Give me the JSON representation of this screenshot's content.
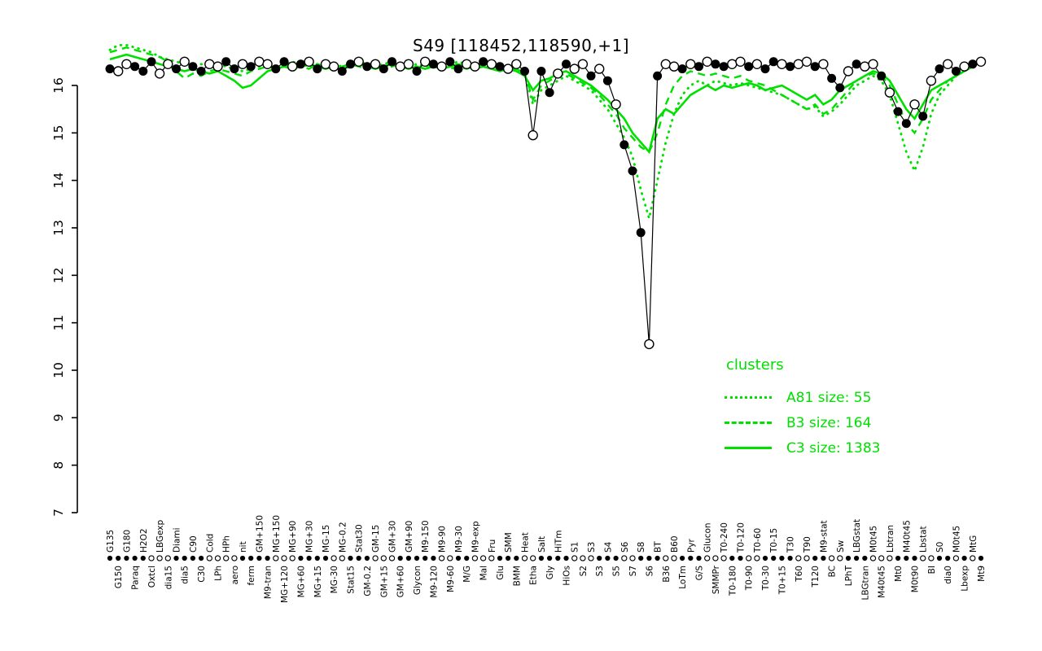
{
  "title": "S49 [118452,118590,+1]",
  "legend": {
    "header": "clusters",
    "entries": [
      {
        "style": "dotted",
        "label": "A81 size: 55"
      },
      {
        "style": "dashed",
        "label": "B3 size: 164"
      },
      {
        "style": "solid",
        "label": "C3 size: 1383"
      }
    ]
  },
  "colors": {
    "cluster_green": "#00e000",
    "series_black": "#000000"
  },
  "chart_data": {
    "type": "line",
    "title": "S49 [118452,118590,+1]",
    "xlabel": "",
    "ylabel": "",
    "ylim": [
      7,
      16
    ],
    "yticks": [
      7,
      8,
      9,
      10,
      11,
      12,
      13,
      14,
      15,
      16
    ],
    "grid": false,
    "legend_position": "right-middle",
    "categories": [
      "G135",
      "G150",
      "G180",
      "Paraq",
      "H2O2",
      "Oxtcl",
      "LBGexp",
      "dia15",
      "Diami",
      "dia5",
      "C90",
      "C30",
      "Cold",
      "LPh",
      "HPh",
      "aero",
      "nit",
      "ferm",
      "GM+150",
      "M9-tran",
      "MG+150",
      "MG+120",
      "MG+90",
      "MG+60",
      "MG+30",
      "MG+15",
      "MG-15",
      "MG-30",
      "MG-0.2",
      "Stat15",
      "Stat30",
      "GM-0.2",
      "GM-15",
      "GM+15",
      "GM+30",
      "GM+60",
      "GM+90",
      "Glycon",
      "M9-150",
      "M9-120",
      "M9-90",
      "M9-60",
      "M9-30",
      "M/G",
      "M9-exp",
      "Mal",
      "Fru",
      "Glu",
      "SMM",
      "BMM",
      "Heat",
      "Etha",
      "Salt",
      "Gly",
      "HiTm",
      "HiOs",
      "S1",
      "S2",
      "S3",
      "S3",
      "S4",
      "S5",
      "S6",
      "S7",
      "S8",
      "S6",
      "BT",
      "B36",
      "B60",
      "LoTm",
      "Pyr",
      "G/S",
      "Glucon",
      "SMMPr",
      "T0-240",
      "T0-180",
      "T0-120",
      "T0-90",
      "T0-60",
      "T0-30",
      "T0-15",
      "T0+15",
      "T30",
      "T60",
      "T90",
      "T120",
      "M9-stat",
      "BC",
      "Sw",
      "LPhT",
      "LBGstat",
      "LBGtran",
      "M0t45",
      "M40t45",
      "Lbtran",
      "Mt0",
      "M40t45",
      "M0t90",
      "Lbstat",
      "BI",
      "S0",
      "dia0",
      "M0t45",
      "Lbexp",
      "MtG",
      "Mt9"
    ],
    "series": [
      {
        "name": "A81",
        "legend_label": "A81 size: 55",
        "style": "dotted",
        "color": "#00e000",
        "values": [
          16.75,
          16.85,
          16.85,
          16.8,
          16.75,
          16.7,
          16.6,
          16.55,
          16.5,
          16.45,
          16.4,
          16.45,
          16.4,
          16.45,
          16.4,
          16.35,
          16.3,
          16.35,
          16.4,
          16.45,
          16.4,
          16.45,
          16.5,
          16.45,
          16.4,
          16.45,
          16.5,
          16.45,
          16.4,
          16.45,
          16.5,
          16.45,
          16.4,
          16.45,
          16.5,
          16.45,
          16.4,
          16.45,
          16.4,
          16.45,
          16.4,
          16.45,
          16.5,
          16.45,
          16.4,
          16.45,
          16.4,
          16.35,
          16.4,
          16.35,
          16.25,
          15.6,
          15.9,
          16.0,
          16.1,
          16.2,
          16.1,
          16.0,
          15.9,
          15.7,
          15.5,
          15.2,
          14.9,
          14.5,
          13.8,
          13.2,
          14.0,
          14.8,
          15.4,
          15.8,
          16.0,
          16.1,
          16.0,
          16.1,
          16.05,
          16.0,
          16.05,
          16.0,
          15.95,
          15.9,
          15.85,
          15.8,
          15.7,
          15.6,
          15.5,
          15.55,
          15.35,
          15.45,
          15.6,
          15.8,
          16.0,
          16.1,
          16.2,
          16.1,
          15.8,
          15.2,
          14.6,
          14.2,
          14.7,
          15.4,
          15.8,
          16.0,
          16.2,
          16.3,
          16.45,
          16.55
        ]
      },
      {
        "name": "B3",
        "legend_label": "B3 size: 164",
        "style": "dashed",
        "color": "#00e000",
        "values": [
          16.7,
          16.75,
          16.8,
          16.75,
          16.7,
          16.65,
          16.6,
          16.5,
          16.3,
          16.15,
          16.25,
          16.2,
          16.3,
          16.35,
          16.3,
          16.25,
          16.2,
          16.3,
          16.35,
          16.4,
          16.35,
          16.4,
          16.45,
          16.4,
          16.35,
          16.45,
          16.4,
          16.35,
          16.4,
          16.45,
          16.4,
          16.35,
          16.4,
          16.35,
          16.4,
          16.45,
          16.4,
          16.35,
          16.4,
          16.45,
          16.4,
          16.35,
          16.4,
          16.35,
          16.4,
          16.45,
          16.4,
          16.35,
          16.3,
          16.35,
          16.25,
          15.7,
          16.0,
          16.1,
          16.2,
          16.25,
          16.15,
          16.05,
          15.95,
          15.8,
          15.6,
          15.4,
          15.1,
          14.9,
          14.7,
          14.6,
          15.0,
          15.6,
          16.0,
          16.2,
          16.3,
          16.25,
          16.2,
          16.25,
          16.2,
          16.15,
          16.2,
          16.1,
          16.05,
          16.0,
          15.9,
          15.8,
          15.7,
          15.6,
          15.5,
          15.6,
          15.4,
          15.5,
          15.7,
          15.9,
          16.1,
          16.2,
          16.25,
          16.2,
          16.0,
          15.6,
          15.2,
          15.0,
          15.3,
          15.7,
          15.9,
          16.1,
          16.2,
          16.3,
          16.4,
          16.45
        ]
      },
      {
        "name": "C3",
        "legend_label": "C3 size: 1383",
        "style": "solid",
        "color": "#00e000",
        "values": [
          16.55,
          16.6,
          16.65,
          16.6,
          16.55,
          16.5,
          16.45,
          16.4,
          16.35,
          16.3,
          16.35,
          16.3,
          16.25,
          16.3,
          16.2,
          16.1,
          15.95,
          16.0,
          16.15,
          16.3,
          16.35,
          16.4,
          16.35,
          16.4,
          16.45,
          16.4,
          16.35,
          16.4,
          16.35,
          16.4,
          16.45,
          16.4,
          16.35,
          16.4,
          16.45,
          16.4,
          16.35,
          16.4,
          16.35,
          16.4,
          16.35,
          16.4,
          16.45,
          16.4,
          16.35,
          16.4,
          16.35,
          16.3,
          16.35,
          16.3,
          16.2,
          15.9,
          16.1,
          16.15,
          16.25,
          16.3,
          16.2,
          16.1,
          16.0,
          15.85,
          15.7,
          15.5,
          15.3,
          15.0,
          14.8,
          14.6,
          15.3,
          15.5,
          15.4,
          15.6,
          15.8,
          15.9,
          16.0,
          15.9,
          16.0,
          15.95,
          16.0,
          16.05,
          16.0,
          15.9,
          15.95,
          16.0,
          15.9,
          15.8,
          15.7,
          15.8,
          15.6,
          15.7,
          15.9,
          16.0,
          16.1,
          16.2,
          16.3,
          16.25,
          16.1,
          15.8,
          15.5,
          15.3,
          15.6,
          15.9,
          16.0,
          16.1,
          16.2,
          16.3,
          16.4,
          16.5
        ]
      },
      {
        "name": "S49",
        "style": "line-markers",
        "color": "#000000",
        "marker_chunks": [
          "foofffoofo",
          "ffooffofoo",
          "ffofofooff",
          "ofoffoofof",
          "offoofofoo",
          "foffofoofo",
          "fofffofoof",
          "ofoffoofof",
          "fofoofoffo",
          "foofoffofo",
          "fofofo"
        ],
        "values": [
          16.35,
          16.3,
          16.45,
          16.4,
          16.3,
          16.5,
          16.25,
          16.45,
          16.35,
          16.5,
          16.4,
          16.3,
          16.45,
          16.4,
          16.5,
          16.35,
          16.45,
          16.4,
          16.5,
          16.45,
          16.35,
          16.5,
          16.4,
          16.45,
          16.5,
          16.35,
          16.45,
          16.4,
          16.3,
          16.45,
          16.5,
          16.4,
          16.45,
          16.35,
          16.5,
          16.4,
          16.45,
          16.3,
          16.5,
          16.45,
          16.4,
          16.5,
          16.35,
          16.45,
          16.4,
          16.5,
          16.45,
          16.4,
          16.35,
          16.45,
          16.3,
          14.95,
          16.3,
          15.85,
          16.25,
          16.45,
          16.35,
          16.45,
          16.2,
          16.35,
          16.1,
          15.6,
          14.75,
          14.2,
          12.9,
          10.55,
          16.2,
          16.45,
          16.4,
          16.35,
          16.45,
          16.4,
          16.5,
          16.45,
          16.4,
          16.45,
          16.5,
          16.4,
          16.45,
          16.35,
          16.5,
          16.45,
          16.4,
          16.45,
          16.5,
          16.4,
          16.45,
          16.15,
          15.95,
          16.3,
          16.45,
          16.4,
          16.45,
          16.2,
          15.85,
          15.45,
          15.2,
          15.6,
          15.35,
          16.1,
          16.35,
          16.45,
          16.3,
          16.4,
          16.45,
          16.5
        ]
      }
    ],
    "axis_strip_marker_chunks": [
      "fffffoooff",
      "ffooooffff",
      "oooffffoof",
      "ffooofffff",
      "ooffooofff",
      "ooffffooof",
      "ffoofffoof",
      "ffoooffoof",
      "fffooffoof",
      "ffooofffoo",
      "ffofof"
    ]
  }
}
